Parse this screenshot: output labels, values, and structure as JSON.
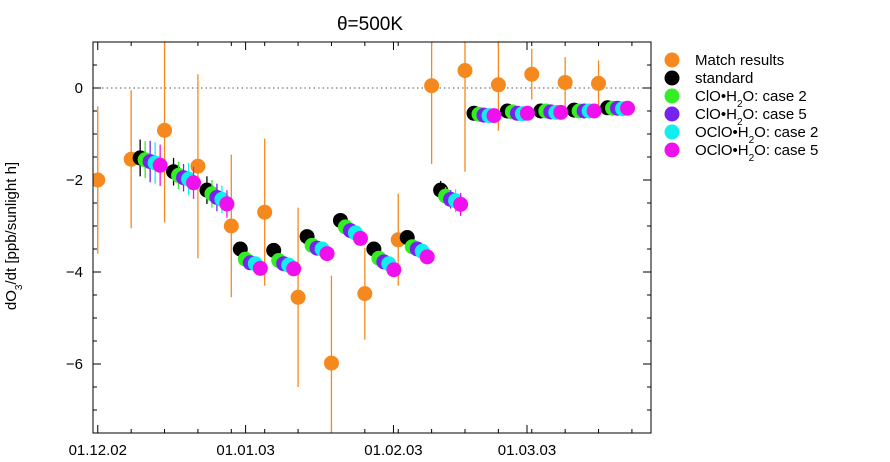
{
  "chart_data": {
    "type": "scatter",
    "title": "θ=500K",
    "ylabel": "dO3/dt [ppb/sunlight h]",
    "xlim": [
      "2002-11-30",
      "2003-03-27"
    ],
    "ylim": [
      -7.5,
      1.0
    ],
    "x_tick_labels": [
      "01.12.02",
      "01.01.03",
      "01.02.03",
      "01.03.03"
    ],
    "x_tick_dates": [
      "2002-12-01",
      "2003-01-01",
      "2003-02-01",
      "2003-03-01"
    ],
    "x_minor_tick_dates": [
      "2002-12-08",
      "2002-12-15",
      "2002-12-22",
      "2002-12-29",
      "2003-01-05",
      "2003-01-12",
      "2003-01-19",
      "2003-01-26",
      "2003-02-02",
      "2003-02-09",
      "2003-02-16",
      "2003-02-23",
      "2003-03-02",
      "2003-03-09",
      "2003-03-16",
      "2003-03-23"
    ],
    "y_ticks": [
      0,
      -2,
      -4,
      -6
    ],
    "y_tick_labels": [
      "0",
      "−2",
      "−4",
      "−6"
    ],
    "y_minor_ticks": [
      0.5,
      -0.5,
      -1,
      -1.5,
      -2.5,
      -3,
      -3.5,
      -4.5,
      -5,
      -5.5,
      -6.5,
      -7
    ],
    "zero_line": true,
    "grid": false,
    "legend_position": "outside-right",
    "series": [
      {
        "name": "Match results",
        "color": "#f5891e",
        "x": [
          "2002-12-01",
          "2002-12-08",
          "2002-12-15",
          "2002-12-22",
          "2002-12-29",
          "2003-01-05",
          "2003-01-12",
          "2003-01-19",
          "2003-01-26",
          "2003-02-02",
          "2003-02-09",
          "2003-02-16",
          "2003-02-23",
          "2003-03-02",
          "2003-03-09",
          "2003-03-16"
        ],
        "y": [
          -2.0,
          -1.55,
          -0.92,
          -1.7,
          -3.0,
          -2.7,
          -4.55,
          -5.98,
          -4.47,
          -3.3,
          0.05,
          0.38,
          0.07,
          0.3,
          0.12,
          0.1
        ],
        "yerr_low": [
          1.6,
          1.5,
          2.0,
          2.0,
          1.55,
          1.6,
          1.95,
          1.9,
          1.0,
          1.0,
          1.7,
          2.2,
          1.0,
          0.55,
          0.55,
          0.5
        ],
        "yerr_high": [
          1.6,
          1.5,
          2.0,
          2.0,
          1.55,
          1.6,
          1.95,
          1.9,
          1.0,
          1.0,
          1.7,
          2.2,
          1.0,
          0.55,
          0.55,
          0.5
        ]
      },
      {
        "name": "standard",
        "color": "#000000",
        "x": [
          "2002-12-08",
          "2002-12-15",
          "2002-12-22",
          "2002-12-29",
          "2003-01-05",
          "2003-01-12",
          "2003-01-19",
          "2003-01-26",
          "2003-02-02",
          "2003-02-09",
          "2003-02-16",
          "2003-02-23",
          "2003-03-02",
          "2003-03-09",
          "2003-03-16"
        ],
        "y": [
          -1.52,
          -1.82,
          -2.22,
          -3.5,
          -3.53,
          -3.23,
          -2.88,
          -3.5,
          -3.25,
          -2.22,
          -0.55,
          -0.5,
          -0.5,
          -0.48,
          -0.43
        ],
        "yerr_low": [
          0.4,
          0.3,
          0.3,
          0.0,
          0.0,
          0.0,
          0.0,
          0.0,
          0.0,
          0.2,
          0.0,
          0.0,
          0.0,
          0.0,
          0.0
        ],
        "yerr_high": [
          0.4,
          0.3,
          0.3,
          0.0,
          0.0,
          0.0,
          0.0,
          0.0,
          0.0,
          0.2,
          0.0,
          0.0,
          0.0,
          0.0,
          0.0
        ]
      },
      {
        "name": "ClO•H2O: case 2",
        "color": "#33ee22",
        "x": [
          "2002-12-08",
          "2002-12-15",
          "2002-12-22",
          "2002-12-29",
          "2003-01-05",
          "2003-01-12",
          "2003-01-19",
          "2003-01-26",
          "2003-02-02",
          "2003-02-09",
          "2003-02-16",
          "2003-02-23",
          "2003-03-02",
          "2003-03-09",
          "2003-03-16"
        ],
        "y": [
          -1.56,
          -1.9,
          -2.3,
          -3.72,
          -3.75,
          -3.42,
          -3.02,
          -3.7,
          -3.45,
          -2.35,
          -0.57,
          -0.52,
          -0.5,
          -0.5,
          -0.44
        ],
        "yerr_low": [
          0.4,
          0.3,
          0.3,
          0.0,
          0.0,
          0.0,
          0.0,
          0.0,
          0.0,
          0.2,
          0.0,
          0.0,
          0.0,
          0.0,
          0.0
        ],
        "yerr_high": [
          0.4,
          0.3,
          0.3,
          0.0,
          0.0,
          0.0,
          0.0,
          0.0,
          0.0,
          0.2,
          0.0,
          0.0,
          0.0,
          0.0,
          0.0
        ]
      },
      {
        "name": "ClO•H2O: case 5",
        "color": "#7722ee",
        "x": [
          "2002-12-08",
          "2002-12-15",
          "2002-12-22",
          "2002-12-29",
          "2003-01-05",
          "2003-01-12",
          "2003-01-19",
          "2003-01-26",
          "2003-02-02",
          "2003-02-09",
          "2003-02-16",
          "2003-02-23",
          "2003-03-02",
          "2003-03-09",
          "2003-03-16"
        ],
        "y": [
          -1.6,
          -1.95,
          -2.38,
          -3.8,
          -3.82,
          -3.48,
          -3.1,
          -3.78,
          -3.5,
          -2.42,
          -0.59,
          -0.55,
          -0.52,
          -0.5,
          -0.44
        ],
        "yerr_low": [
          0.45,
          0.3,
          0.3,
          0.0,
          0.0,
          0.0,
          0.0,
          0.0,
          0.0,
          0.2,
          0.0,
          0.0,
          0.0,
          0.0,
          0.0
        ],
        "yerr_high": [
          0.45,
          0.3,
          0.3,
          0.0,
          0.0,
          0.0,
          0.0,
          0.0,
          0.0,
          0.2,
          0.0,
          0.0,
          0.0,
          0.0,
          0.0
        ]
      },
      {
        "name": "OClO•H2O: case 2",
        "color": "#11eeee",
        "x": [
          "2002-12-08",
          "2002-12-15",
          "2002-12-22",
          "2002-12-29",
          "2003-01-05",
          "2003-01-12",
          "2003-01-19",
          "2003-01-26",
          "2003-02-02",
          "2003-02-09",
          "2003-02-16",
          "2003-02-23",
          "2003-03-02",
          "2003-03-09",
          "2003-03-16"
        ],
        "y": [
          -1.63,
          -1.98,
          -2.42,
          -3.82,
          -3.85,
          -3.5,
          -3.15,
          -3.82,
          -3.55,
          -2.45,
          -0.6,
          -0.56,
          -0.53,
          -0.5,
          -0.45
        ],
        "yerr_low": [
          0.45,
          0.35,
          0.3,
          0.0,
          0.0,
          0.0,
          0.0,
          0.0,
          0.0,
          0.25,
          0.0,
          0.0,
          0.0,
          0.0,
          0.0
        ],
        "yerr_high": [
          0.45,
          0.35,
          0.3,
          0.0,
          0.0,
          0.0,
          0.0,
          0.0,
          0.0,
          0.25,
          0.0,
          0.0,
          0.0,
          0.0,
          0.0
        ]
      },
      {
        "name": "OClO•H2O: case 5",
        "color": "#ee11ee",
        "x": [
          "2002-12-08",
          "2002-12-15",
          "2002-12-22",
          "2002-12-29",
          "2003-01-05",
          "2003-01-12",
          "2003-01-19",
          "2003-01-26",
          "2003-02-02",
          "2003-02-09",
          "2003-02-16",
          "2003-02-23",
          "2003-03-02",
          "2003-03-09",
          "2003-03-16"
        ],
        "y": [
          -1.68,
          -2.06,
          -2.52,
          -3.92,
          -3.93,
          -3.6,
          -3.27,
          -3.95,
          -3.67,
          -2.53,
          -0.6,
          -0.55,
          -0.53,
          -0.5,
          -0.44
        ],
        "yerr_low": [
          0.45,
          0.35,
          0.3,
          0.0,
          0.0,
          0.0,
          0.0,
          0.0,
          0.0,
          0.25,
          0.0,
          0.0,
          0.0,
          0.0,
          0.0
        ],
        "yerr_high": [
          0.45,
          0.35,
          0.3,
          0.0,
          0.0,
          0.0,
          0.0,
          0.0,
          0.0,
          0.25,
          0.0,
          0.0,
          0.0,
          0.0,
          0.0
        ]
      }
    ]
  }
}
